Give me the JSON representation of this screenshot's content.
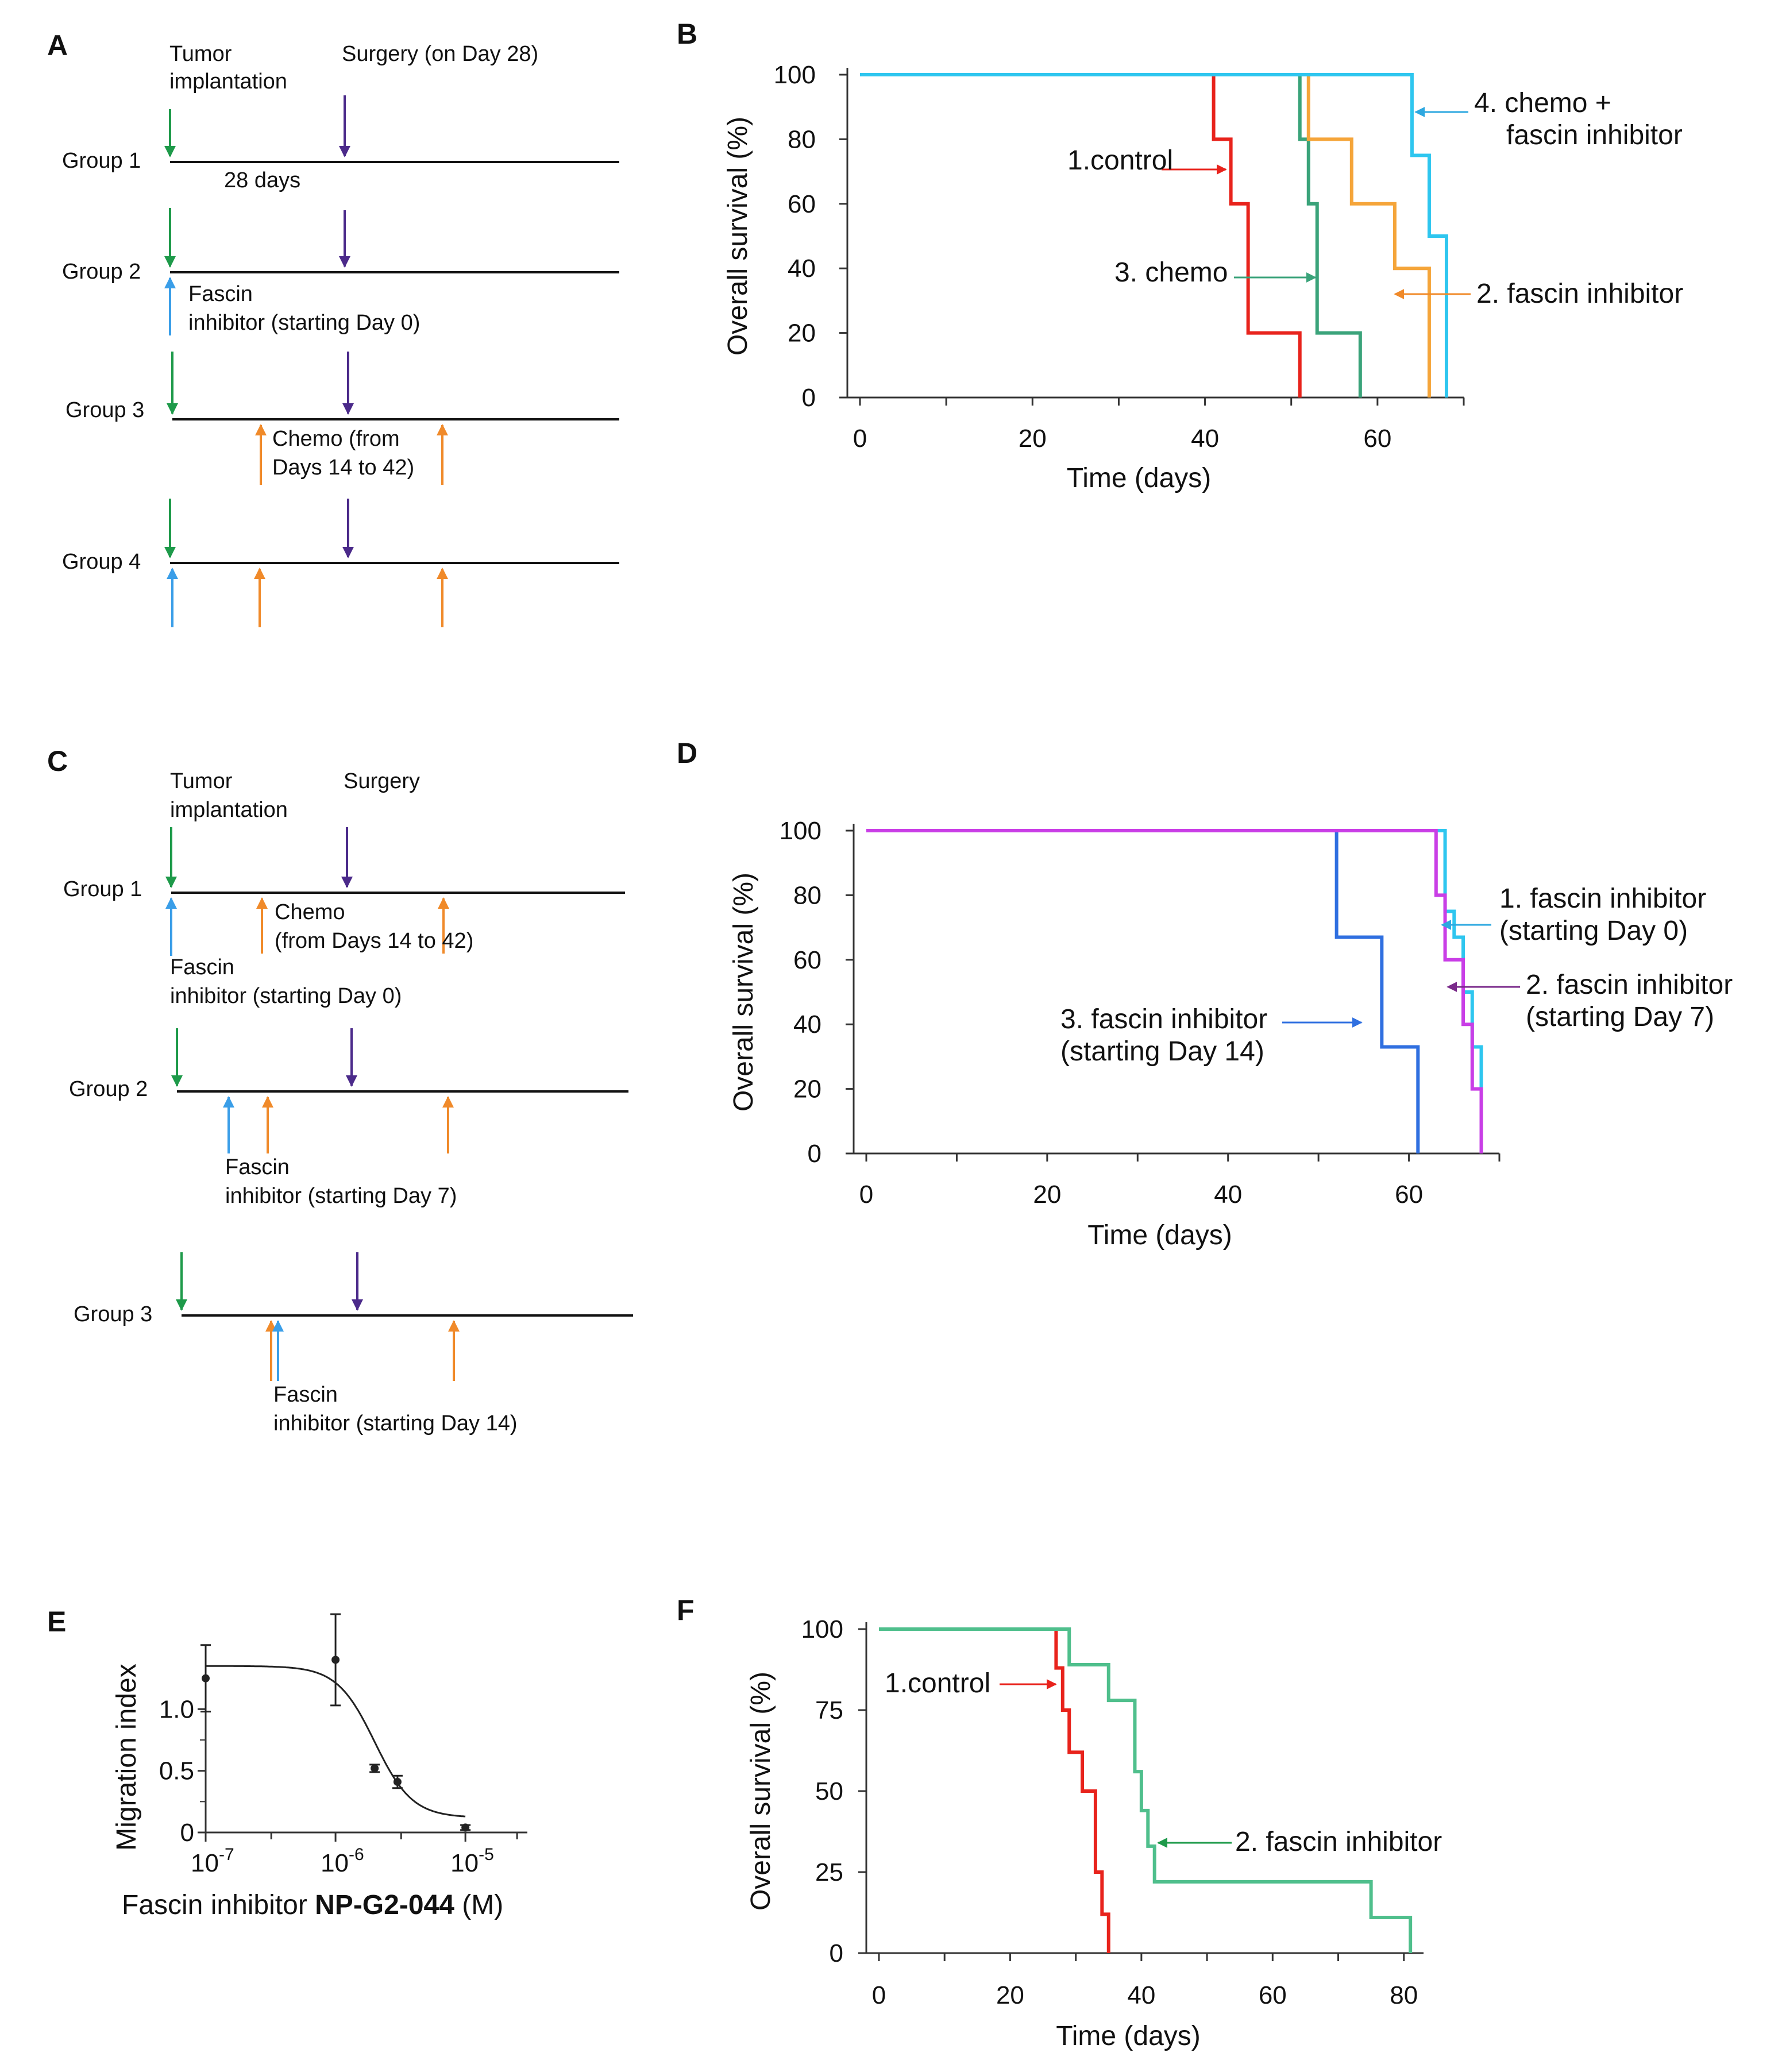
{
  "panels": {
    "A": "A",
    "B": "B",
    "C": "C",
    "D": "D",
    "E": "E",
    "F": "F"
  },
  "colors": {
    "green": "#1e9a4a",
    "purple": "#4b2a8a",
    "blue": "#3a9ee8",
    "orange": "#f08a2a",
    "red": "#e8231c",
    "teal": "#3aa37a",
    "amber": "#f5a53a",
    "cyan": "#2ec6ef",
    "royal": "#2f6fe0",
    "magenta": "#c93ee6",
    "mint": "#4fbf8c"
  },
  "panelA": {
    "tumor": [
      "Tumor",
      "implantation"
    ],
    "surgery": "Surgery (on Day 28)",
    "group1": "Group 1",
    "days28": "28 days",
    "group2": "Group 2",
    "fascin": [
      "Fascin",
      "inhibitor (starting Day 0)"
    ],
    "group3": "Group 3",
    "chemo": [
      "Chemo (from",
      "Days 14 to 42)"
    ],
    "group4": "Group 4"
  },
  "panelC": {
    "tumor": [
      "Tumor",
      "implantation"
    ],
    "surgery": "Surgery",
    "group1": "Group 1",
    "chemo": [
      "Chemo",
      "(from Days 14 to 42)"
    ],
    "fascin0": [
      "Fascin",
      "inhibitor (starting Day 0)"
    ],
    "group2": "Group 2",
    "fascin7": [
      "Fascin",
      "inhibitor (starting Day 7)"
    ],
    "group3": "Group 3",
    "fascin14": [
      "Fascin",
      "inhibitor (starting Day 14)"
    ]
  },
  "chart_data": [
    {
      "panel": "B",
      "type": "line",
      "step": true,
      "xlabel": "Time (days)",
      "ylabel": "Overall survival (%)",
      "xlim": [
        0,
        70
      ],
      "ylim": [
        0,
        100
      ],
      "xticks": [
        0,
        20,
        40,
        60
      ],
      "yticks": [
        0,
        20,
        40,
        60,
        80,
        100
      ],
      "series": [
        {
          "name": "1.control",
          "color": "#e8231c",
          "x": [
            0,
            41,
            43,
            45,
            51
          ],
          "y": [
            100,
            80,
            60,
            20,
            0
          ]
        },
        {
          "name": "3. chemo",
          "color": "#3aa37a",
          "x": [
            0,
            51,
            52,
            53,
            58
          ],
          "y": [
            100,
            80,
            60,
            20,
            0
          ]
        },
        {
          "name": "2. fascin inhibitor",
          "color": "#f5a53a",
          "x": [
            0,
            52,
            57,
            62,
            66
          ],
          "y": [
            100,
            80,
            60,
            40,
            0
          ]
        },
        {
          "name": "4. chemo + fascin inhibitor",
          "color": "#2ec6ef",
          "x": [
            0,
            64,
            66,
            68
          ],
          "y": [
            100,
            75,
            50,
            0
          ]
        }
      ],
      "annotations": [
        {
          "text": [
            "1.control"
          ]
        },
        {
          "text": [
            "3. chemo"
          ]
        },
        {
          "text": [
            "2. fascin inhibitor"
          ]
        },
        {
          "text": [
            "4. chemo +",
            "fascin inhibitor"
          ]
        }
      ]
    },
    {
      "panel": "D",
      "type": "line",
      "step": true,
      "xlabel": "Time (days)",
      "ylabel": "Overall survival (%)",
      "xlim": [
        0,
        70
      ],
      "ylim": [
        0,
        100
      ],
      "xticks": [
        0,
        20,
        40,
        60
      ],
      "yticks": [
        0,
        20,
        40,
        60,
        80,
        100
      ],
      "series": [
        {
          "name": "3. fascin inhibitor (starting Day 14)",
          "color": "#2f6fe0",
          "x": [
            0,
            52,
            57,
            61
          ],
          "y": [
            100,
            67,
            33,
            0
          ]
        },
        {
          "name": "1. fascin inhibitor (starting Day 0)",
          "color": "#2ec6ef",
          "x": [
            0,
            64,
            65,
            66,
            67,
            68
          ],
          "y": [
            100,
            75,
            67,
            50,
            33,
            0
          ]
        },
        {
          "name": "2. fascin inhibitor (starting Day 7)",
          "color": "#c93ee6",
          "x": [
            0,
            63,
            64,
            66,
            67,
            68
          ],
          "y": [
            100,
            80,
            60,
            40,
            20,
            0
          ]
        }
      ],
      "annotations": [
        {
          "text": [
            "1. fascin inhibitor",
            "(starting Day 0)"
          ]
        },
        {
          "text": [
            "2. fascin inhibitor",
            "(starting Day 7)"
          ]
        },
        {
          "text": [
            "3. fascin inhibitor",
            "(starting Day 14)"
          ]
        }
      ]
    },
    {
      "panel": "E",
      "type": "scatter",
      "xlabel_prefix": "Fascin inhibitor ",
      "xlabel_bold": "NP-G2-044",
      "xlabel_suffix": " (M)",
      "ylabel": "Migration index",
      "xscale": "log",
      "xlim": [
        1e-07,
        3e-05
      ],
      "ylim": [
        0,
        1.5
      ],
      "xticks": [
        {
          "base": "10",
          "exp": "-7"
        },
        {
          "base": "10",
          "exp": "-6"
        },
        {
          "base": "10",
          "exp": "-5"
        }
      ],
      "yticks": [
        "0",
        "0.5",
        "1.0"
      ],
      "points": [
        {
          "x": 1e-07,
          "y": 1.25,
          "err": 0.27
        },
        {
          "x": 1e-06,
          "y": 1.4,
          "err": 0.37
        },
        {
          "x": 2e-06,
          "y": 0.52,
          "err": 0.03
        },
        {
          "x": 3e-06,
          "y": 0.41,
          "err": 0.05
        },
        {
          "x": 1e-05,
          "y": 0.04,
          "err": 0.02
        }
      ],
      "fit": {
        "top": 1.35,
        "bottom": 0.12,
        "ic50": 2e-06,
        "hill": 3
      }
    },
    {
      "panel": "F",
      "type": "line",
      "step": true,
      "xlabel": "Time (days)",
      "ylabel": "Overall survival (%)",
      "xlim": [
        0,
        83
      ],
      "ylim": [
        0,
        100
      ],
      "xticks": [
        0,
        20,
        40,
        60,
        80
      ],
      "yticks": [
        0,
        25,
        50,
        75,
        100
      ],
      "series": [
        {
          "name": "1.control",
          "color": "#e8231c",
          "x": [
            0,
            27,
            28,
            29,
            31,
            33,
            34,
            35
          ],
          "y": [
            100,
            88,
            75,
            62,
            50,
            25,
            12,
            0
          ]
        },
        {
          "name": "2. fascin inhibitor",
          "color": "#4fbf8c",
          "x": [
            0,
            29,
            35,
            39,
            40,
            41,
            42,
            75,
            81
          ],
          "y": [
            100,
            89,
            78,
            56,
            44,
            33,
            22,
            11,
            0
          ]
        }
      ],
      "annotations": [
        {
          "text": [
            "1.control"
          ]
        },
        {
          "text": [
            "2. fascin inhibitor"
          ]
        }
      ]
    }
  ]
}
